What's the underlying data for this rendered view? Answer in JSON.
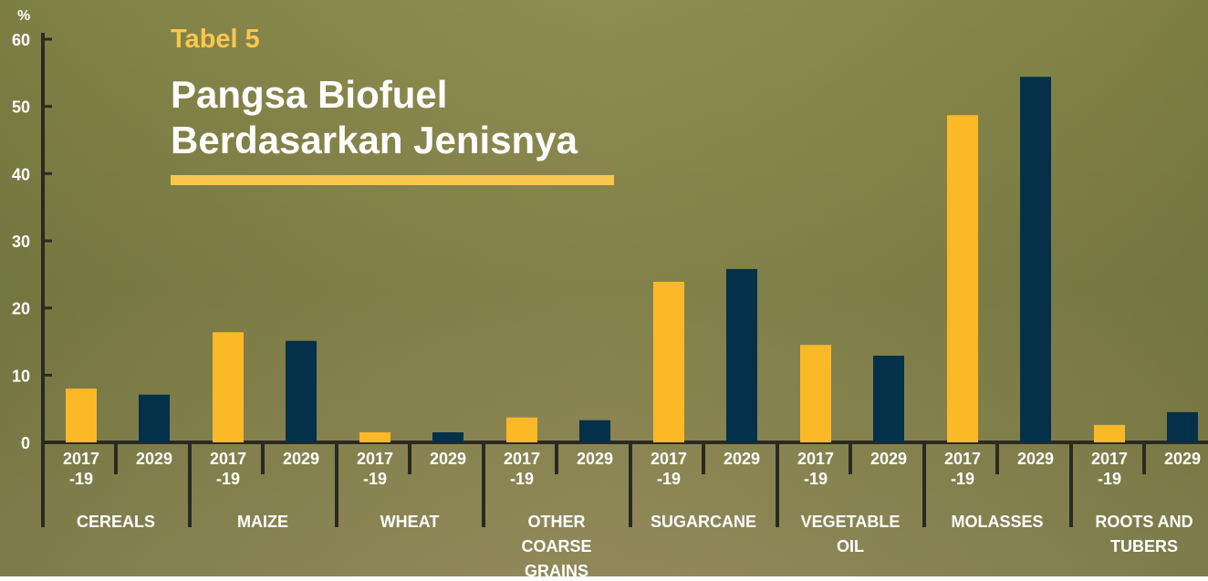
{
  "chart_data": {
    "type": "bar",
    "label": "Tabel 5",
    "title": "Pangsa Biofuel\nBerdasarkan Jenisnya",
    "ylabel": "%",
    "categories": [
      "CEREALS",
      "MAIZE",
      "WHEAT",
      "OTHER\nCOARSE\nGRAINS",
      "SUGARCANE",
      "VEGETABLE\nOIL",
      "MOLASSES",
      "ROOTS AND\nTUBERS"
    ],
    "series": [
      {
        "name": "2017\n-19",
        "color": "#fbb827",
        "values": [
          8.0,
          16.4,
          1.5,
          3.7,
          23.9,
          14.5,
          48.7,
          2.6
        ]
      },
      {
        "name": "2029",
        "color": "#04304a",
        "values": [
          7.1,
          15.1,
          1.5,
          3.3,
          25.8,
          12.9,
          54.4,
          4.5
        ]
      }
    ],
    "ylim": [
      0,
      60
    ],
    "yticks": [
      0,
      10,
      20,
      30,
      40,
      50,
      60
    ]
  }
}
